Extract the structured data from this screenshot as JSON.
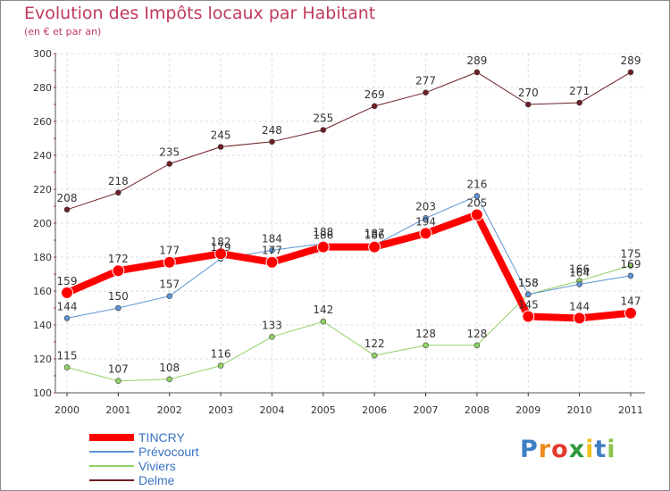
{
  "title": "Evolution des Impôts locaux par Habitant",
  "subtitle": "(en € et par an)",
  "brand": {
    "letters": [
      "P",
      "r",
      "o",
      "x",
      "i",
      "t",
      "i"
    ],
    "colors": [
      "#3f7fc6",
      "#f08a1c",
      "#e23b2e",
      "#2e9a3c",
      "#f0c21c",
      "#3f7fc6",
      "#8bc34a"
    ]
  },
  "chart_data": {
    "type": "line",
    "categories": [
      "2000",
      "2001",
      "2002",
      "2003",
      "2004",
      "2005",
      "2006",
      "2007",
      "2008",
      "2009",
      "2010",
      "2011"
    ],
    "ylim": [
      100,
      300
    ],
    "yticks": [
      "100",
      "120",
      "140",
      "160",
      "180",
      "200",
      "220",
      "240",
      "260",
      "280",
      "300"
    ],
    "grid": true,
    "legend_position": "bottom-left",
    "series": [
      {
        "name": "Delme",
        "color": "#6d1f24",
        "width": 1,
        "values": [
          208,
          218,
          235,
          245,
          248,
          255,
          269,
          277,
          289,
          270,
          271,
          289
        ],
        "labels": [
          "208",
          "218",
          "235",
          "245",
          "248",
          "255",
          "269",
          "277",
          "289",
          "270",
          "271",
          "289"
        ]
      },
      {
        "name": "Viviers",
        "color": "#8fd163",
        "width": 1,
        "values": [
          115,
          107,
          108,
          116,
          133,
          142,
          122,
          128,
          128,
          158,
          166,
          175
        ],
        "labels": [
          "115",
          "107",
          "108",
          "116",
          "133",
          "142",
          "122",
          "128",
          "128",
          "158",
          "166",
          "175"
        ]
      },
      {
        "name": "Prévocourt",
        "color": "#5b93d3",
        "width": 1,
        "values": [
          144,
          150,
          157,
          179,
          184,
          188,
          187,
          203,
          216,
          158,
          164,
          169
        ],
        "labels": [
          "144",
          "150",
          "157",
          "179",
          "184",
          "188",
          "187",
          "203",
          "216",
          "158",
          "164",
          "169"
        ]
      },
      {
        "name": "TINCRY",
        "color": "#ff0000",
        "width": 8,
        "values": [
          159,
          172,
          177,
          182,
          177,
          186,
          186,
          194,
          205,
          145,
          144,
          147
        ],
        "labels": [
          "159",
          "172",
          "177",
          "182",
          "177",
          "186",
          "186",
          "194",
          "205",
          "145",
          "144",
          "147"
        ]
      }
    ],
    "legend": [
      "TINCRY",
      "Prévocourt",
      "Viviers",
      "Delme"
    ]
  }
}
